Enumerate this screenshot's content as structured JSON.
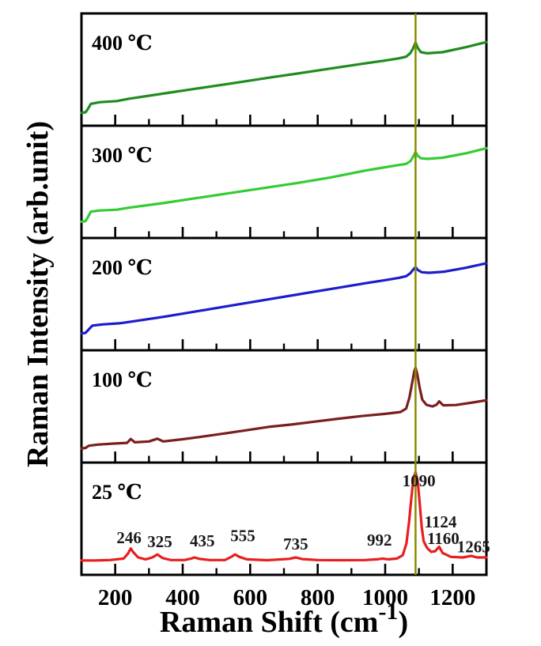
{
  "figure": {
    "background": "#ffffff",
    "frame_color": "#000000"
  },
  "chart_data": {
    "type": "line",
    "title": "",
    "ylabel": "Raman Intensity (arb.unit)",
    "xlabel_prefix": "Raman Shift (cm",
    "xlabel_sup": "-1",
    "xlabel_suffix": ")",
    "x_range": [
      100,
      1300
    ],
    "x_major_ticks": [
      200,
      400,
      600,
      800,
      1000,
      1200
    ],
    "x_minor_ticks": [
      300,
      500,
      700,
      900,
      1100
    ],
    "grid": false,
    "legend": "none",
    "vline": {
      "x": 1090,
      "color": "#8B8B00"
    },
    "panels": [
      {
        "label": "400 ℃",
        "temperature_c": 400,
        "color": "#1E8C1E",
        "points": [
          [
            100,
            0.885
          ],
          [
            112,
            0.88
          ],
          [
            118,
            0.855
          ],
          [
            128,
            0.805
          ],
          [
            155,
            0.79
          ],
          [
            205,
            0.78
          ],
          [
            240,
            0.76
          ],
          [
            340,
            0.715
          ],
          [
            440,
            0.67
          ],
          [
            540,
            0.625
          ],
          [
            660,
            0.57
          ],
          [
            740,
            0.535
          ],
          [
            840,
            0.49
          ],
          [
            940,
            0.445
          ],
          [
            1000,
            0.42
          ],
          [
            1040,
            0.4
          ],
          [
            1062,
            0.385
          ],
          [
            1074,
            0.355
          ],
          [
            1082,
            0.315
          ],
          [
            1090,
            0.26
          ],
          [
            1097,
            0.31
          ],
          [
            1106,
            0.345
          ],
          [
            1125,
            0.355
          ],
          [
            1170,
            0.345
          ],
          [
            1240,
            0.3
          ],
          [
            1300,
            0.255
          ]
        ]
      },
      {
        "label": "300 ℃",
        "temperature_c": 300,
        "color": "#33CC33",
        "points": [
          [
            100,
            0.855
          ],
          [
            112,
            0.85
          ],
          [
            118,
            0.82
          ],
          [
            128,
            0.765
          ],
          [
            155,
            0.755
          ],
          [
            205,
            0.748
          ],
          [
            240,
            0.73
          ],
          [
            340,
            0.69
          ],
          [
            440,
            0.645
          ],
          [
            540,
            0.6
          ],
          [
            640,
            0.555
          ],
          [
            740,
            0.51
          ],
          [
            840,
            0.46
          ],
          [
            940,
            0.4
          ],
          [
            1000,
            0.37
          ],
          [
            1040,
            0.35
          ],
          [
            1062,
            0.34
          ],
          [
            1075,
            0.315
          ],
          [
            1083,
            0.275
          ],
          [
            1090,
            0.235
          ],
          [
            1097,
            0.27
          ],
          [
            1106,
            0.29
          ],
          [
            1125,
            0.295
          ],
          [
            1170,
            0.285
          ],
          [
            1240,
            0.245
          ],
          [
            1300,
            0.2
          ]
        ]
      },
      {
        "label": "200 ℃",
        "temperature_c": 200,
        "color": "#1C1CCC",
        "points": [
          [
            100,
            0.85
          ],
          [
            112,
            0.845
          ],
          [
            120,
            0.82
          ],
          [
            132,
            0.78
          ],
          [
            162,
            0.77
          ],
          [
            212,
            0.76
          ],
          [
            247,
            0.745
          ],
          [
            347,
            0.7
          ],
          [
            447,
            0.65
          ],
          [
            547,
            0.6
          ],
          [
            647,
            0.55
          ],
          [
            747,
            0.5
          ],
          [
            847,
            0.45
          ],
          [
            947,
            0.4
          ],
          [
            1000,
            0.375
          ],
          [
            1040,
            0.355
          ],
          [
            1062,
            0.34
          ],
          [
            1074,
            0.315
          ],
          [
            1082,
            0.285
          ],
          [
            1090,
            0.26
          ],
          [
            1097,
            0.285
          ],
          [
            1108,
            0.305
          ],
          [
            1130,
            0.31
          ],
          [
            1175,
            0.3
          ],
          [
            1240,
            0.265
          ],
          [
            1300,
            0.225
          ]
        ]
      },
      {
        "label": "100 ℃",
        "temperature_c": 100,
        "color": "#7A1E1E",
        "points": [
          [
            100,
            0.875
          ],
          [
            112,
            0.87
          ],
          [
            122,
            0.85
          ],
          [
            148,
            0.84
          ],
          [
            200,
            0.83
          ],
          [
            235,
            0.825
          ],
          [
            246,
            0.79
          ],
          [
            258,
            0.82
          ],
          [
            300,
            0.812
          ],
          [
            325,
            0.787
          ],
          [
            342,
            0.812
          ],
          [
            400,
            0.792
          ],
          [
            460,
            0.768
          ],
          [
            520,
            0.742
          ],
          [
            580,
            0.716
          ],
          [
            660,
            0.68
          ],
          [
            720,
            0.662
          ],
          [
            790,
            0.636
          ],
          [
            860,
            0.61
          ],
          [
            930,
            0.586
          ],
          [
            1000,
            0.566
          ],
          [
            1045,
            0.55
          ],
          [
            1062,
            0.52
          ],
          [
            1072,
            0.42
          ],
          [
            1080,
            0.29
          ],
          [
            1086,
            0.19
          ],
          [
            1090,
            0.155
          ],
          [
            1095,
            0.21
          ],
          [
            1102,
            0.33
          ],
          [
            1110,
            0.44
          ],
          [
            1122,
            0.485
          ],
          [
            1140,
            0.5
          ],
          [
            1152,
            0.485
          ],
          [
            1160,
            0.455
          ],
          [
            1172,
            0.49
          ],
          [
            1210,
            0.487
          ],
          [
            1260,
            0.465
          ],
          [
            1300,
            0.445
          ]
        ]
      },
      {
        "label": "25 ℃",
        "temperature_c": 25,
        "color": "#E81E1E",
        "points": [
          [
            100,
            0.872
          ],
          [
            140,
            0.872
          ],
          [
            185,
            0.868
          ],
          [
            225,
            0.855
          ],
          [
            238,
            0.81
          ],
          [
            246,
            0.765
          ],
          [
            254,
            0.8
          ],
          [
            268,
            0.845
          ],
          [
            290,
            0.862
          ],
          [
            310,
            0.845
          ],
          [
            325,
            0.818
          ],
          [
            340,
            0.85
          ],
          [
            365,
            0.868
          ],
          [
            405,
            0.868
          ],
          [
            425,
            0.855
          ],
          [
            435,
            0.845
          ],
          [
            450,
            0.858
          ],
          [
            480,
            0.868
          ],
          [
            525,
            0.868
          ],
          [
            545,
            0.838
          ],
          [
            555,
            0.818
          ],
          [
            568,
            0.84
          ],
          [
            590,
            0.862
          ],
          [
            650,
            0.87
          ],
          [
            715,
            0.858
          ],
          [
            735,
            0.845
          ],
          [
            755,
            0.86
          ],
          [
            800,
            0.868
          ],
          [
            870,
            0.87
          ],
          [
            940,
            0.868
          ],
          [
            975,
            0.862
          ],
          [
            992,
            0.855
          ],
          [
            1010,
            0.862
          ],
          [
            1035,
            0.855
          ],
          [
            1052,
            0.825
          ],
          [
            1063,
            0.72
          ],
          [
            1071,
            0.52
          ],
          [
            1078,
            0.3
          ],
          [
            1084,
            0.14
          ],
          [
            1090,
            0.085
          ],
          [
            1096,
            0.16
          ],
          [
            1102,
            0.35
          ],
          [
            1108,
            0.57
          ],
          [
            1114,
            0.7
          ],
          [
            1124,
            0.76
          ],
          [
            1136,
            0.795
          ],
          [
            1148,
            0.79
          ],
          [
            1160,
            0.75
          ],
          [
            1170,
            0.805
          ],
          [
            1195,
            0.84
          ],
          [
            1230,
            0.845
          ],
          [
            1255,
            0.832
          ],
          [
            1272,
            0.845
          ],
          [
            1300,
            0.845
          ]
        ],
        "peak_labels": [
          {
            "text": "246",
            "x": 241,
            "y": 0.72
          },
          {
            "text": "325",
            "x": 332,
            "y": 0.755
          },
          {
            "text": "435",
            "x": 458,
            "y": 0.745
          },
          {
            "text": "555",
            "x": 578,
            "y": 0.7
          },
          {
            "text": "735",
            "x": 735,
            "y": 0.775
          },
          {
            "text": "992",
            "x": 983,
            "y": 0.74
          },
          {
            "text": "1090",
            "x": 1100,
            "y": 0.21
          },
          {
            "text": "1124",
            "x": 1164,
            "y": 0.577
          },
          {
            "text": "1160",
            "x": 1172,
            "y": 0.725
          },
          {
            "text": "1265",
            "x": 1262,
            "y": 0.8
          }
        ]
      }
    ]
  }
}
